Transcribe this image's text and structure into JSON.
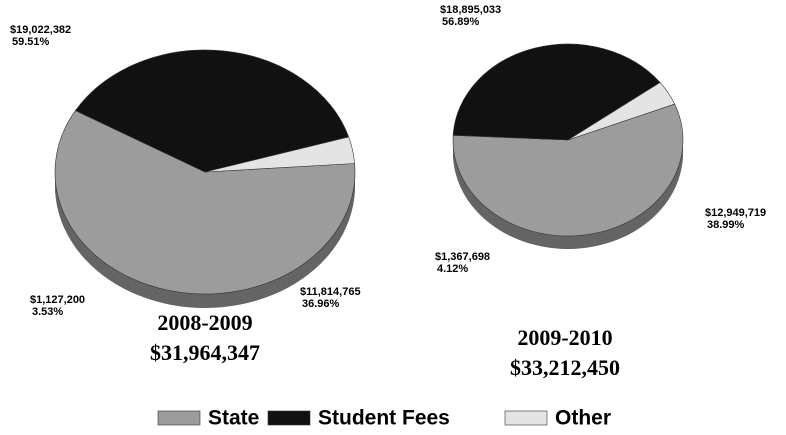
{
  "chart_data": [
    {
      "type": "pie",
      "title": "2008-2009",
      "subtitle": "$31,964,347",
      "categories": [
        "State",
        "Student Fees",
        "Other"
      ],
      "values": [
        19022382,
        11814765,
        1127200
      ],
      "value_labels": [
        "$19,022,382",
        "$11,814,765",
        "$1,127,200"
      ],
      "percent_labels": [
        "59.51%",
        "36.96%",
        "3.53%"
      ],
      "colors": [
        "#9c9c9c",
        "#111111",
        "#e4e4e4"
      ]
    },
    {
      "type": "pie",
      "title": "2009-2010",
      "subtitle": "$33,212,450",
      "categories": [
        "State",
        "Student Fees",
        "Other"
      ],
      "values": [
        18895033,
        12949719,
        1367698
      ],
      "value_labels": [
        "$18,895,033",
        "$12,949,719",
        "$1,367,698"
      ],
      "percent_labels": [
        "56.89%",
        "38.99%",
        "4.12%"
      ],
      "colors": [
        "#9c9c9c",
        "#111111",
        "#e4e4e4"
      ]
    }
  ]
}
